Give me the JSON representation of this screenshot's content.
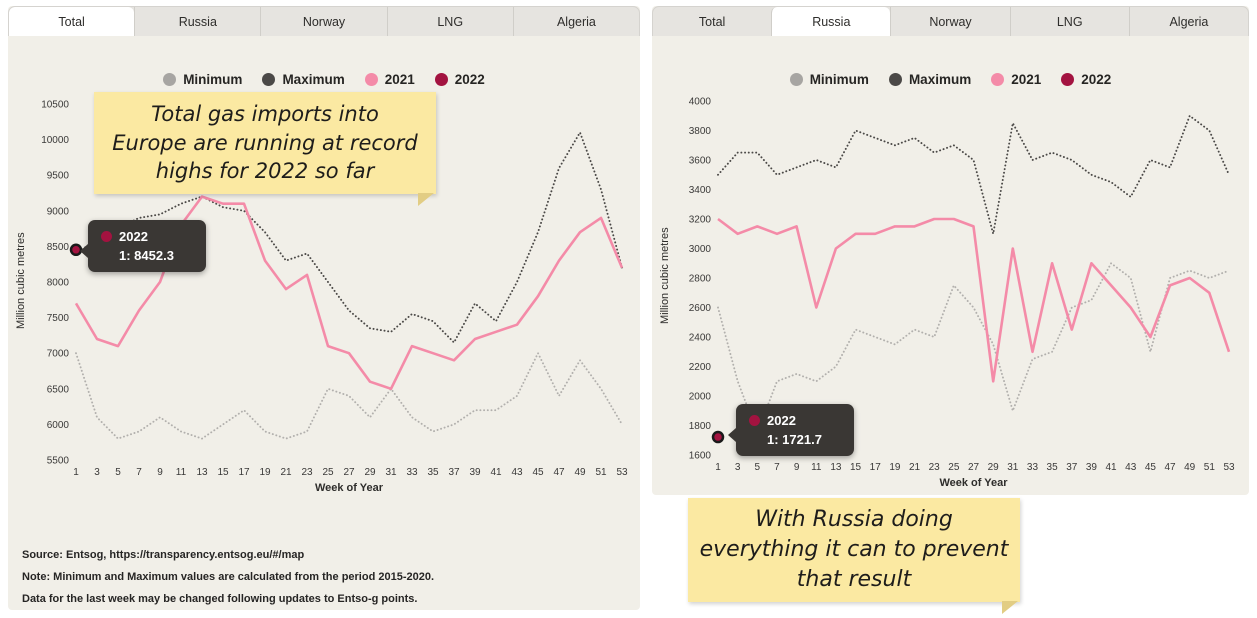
{
  "colors": {
    "panel_bg": "#f1efe8",
    "tab_bg": "#e6e4e0",
    "tab_active_bg": "#ffffff",
    "sticky_bg": "#fbe9a2",
    "sticky_fold": "#e2cd84",
    "tooltip_bg": "#3a3734",
    "minimum": "#b2b0ad",
    "maximum": "#4b4947",
    "y2021": "#f48ba8",
    "y2022": "#a31340"
  },
  "left_panel": {
    "tabs": [
      {
        "label": "Total",
        "active": true
      },
      {
        "label": "Russia",
        "active": false
      },
      {
        "label": "Norway",
        "active": false
      },
      {
        "label": "LNG",
        "active": false
      },
      {
        "label": "Algeria",
        "active": false
      }
    ],
    "legend": [
      {
        "label": "Minimum",
        "color": "#a7a5a2"
      },
      {
        "label": "Maximum",
        "color": "#4b4947"
      },
      {
        "label": "2021",
        "color": "#f48ba8"
      },
      {
        "label": "2022",
        "color": "#a31340"
      }
    ],
    "sticky_note": {
      "lines": [
        "Total gas imports into",
        "Europe are running at record",
        "highs for 2022 so far"
      ]
    },
    "tooltip": {
      "series": "2022",
      "value": "1: 8452.3"
    },
    "source_notes": [
      "Source: Entsog,  https://transparency.entsog.eu/#/map",
      "Note: Minimum and Maximum values are calculated from the period 2015-2020.",
      "Data for the last week may be changed following updates to Entso-g points."
    ]
  },
  "right_panel": {
    "tabs": [
      {
        "label": "Total",
        "active": false
      },
      {
        "label": "Russia",
        "active": true
      },
      {
        "label": "Norway",
        "active": false
      },
      {
        "label": "LNG",
        "active": false
      },
      {
        "label": "Algeria",
        "active": false
      }
    ],
    "legend": [
      {
        "label": "Minimum",
        "color": "#a7a5a2"
      },
      {
        "label": "Maximum",
        "color": "#4b4947"
      },
      {
        "label": "2021",
        "color": "#f48ba8"
      },
      {
        "label": "2022",
        "color": "#a31340"
      }
    ],
    "sticky_note": {
      "lines": [
        "With Russia doing",
        "everything it can to prevent",
        "that result"
      ]
    },
    "tooltip": {
      "series": "2022",
      "value": "1: 1721.7"
    }
  },
  "chart_data": [
    {
      "type": "line",
      "title": "Total gas imports into Europe",
      "xlabel": "Week of Year",
      "ylabel": "Million cubic metres",
      "xlim": [
        1,
        53
      ],
      "ylim": [
        5500,
        10500
      ],
      "ytick_step": 500,
      "grid": false,
      "legend_position": "top",
      "xticks": [
        1,
        3,
        5,
        7,
        9,
        11,
        13,
        15,
        17,
        19,
        21,
        23,
        25,
        27,
        29,
        31,
        33,
        35,
        37,
        39,
        41,
        43,
        45,
        47,
        49,
        51,
        53
      ],
      "x": [
        1,
        3,
        5,
        7,
        9,
        11,
        13,
        15,
        17,
        19,
        21,
        23,
        25,
        27,
        29,
        31,
        33,
        35,
        37,
        39,
        41,
        43,
        45,
        47,
        49,
        51,
        53
      ],
      "series": [
        {
          "name": "Minimum",
          "style": "dotted",
          "color": "#b2b0ad",
          "values": [
            7000,
            6100,
            5800,
            5900,
            6100,
            5900,
            5800,
            6000,
            6200,
            5900,
            5800,
            5900,
            6500,
            6400,
            6100,
            6500,
            6100,
            5900,
            6000,
            6200,
            6200,
            6400,
            7000,
            6400,
            6900,
            6500,
            6000
          ]
        },
        {
          "name": "Maximum",
          "style": "dotted",
          "color": "#4b4947",
          "values": [
            8400,
            8600,
            8750,
            8900,
            8950,
            9100,
            9200,
            9050,
            9000,
            8700,
            8300,
            8400,
            8000,
            7600,
            7350,
            7300,
            7550,
            7450,
            7150,
            7700,
            7450,
            8000,
            8700,
            9600,
            10100,
            9300,
            8200
          ]
        },
        {
          "name": "2021",
          "style": "solid",
          "color": "#f48ba8",
          "values": [
            7700,
            7200,
            7100,
            7600,
            8000,
            8800,
            9200,
            9100,
            9100,
            8300,
            7900,
            8100,
            7100,
            7000,
            6600,
            6500,
            7100,
            7000,
            6900,
            7200,
            7300,
            7400,
            7800,
            8300,
            8700,
            8900,
            8200
          ]
        },
        {
          "name": "2022",
          "style": "point",
          "color": "#a31340",
          "x": [
            1
          ],
          "values": [
            8452.3
          ]
        }
      ]
    },
    {
      "type": "line",
      "title": "Russia gas imports into Europe",
      "xlabel": "Week of Year",
      "ylabel": "Million cubic metres",
      "xlim": [
        1,
        53
      ],
      "ylim": [
        1600,
        4000
      ],
      "ytick_step": 200,
      "grid": false,
      "legend_position": "top",
      "xticks": [
        1,
        3,
        5,
        7,
        9,
        11,
        13,
        15,
        17,
        19,
        21,
        23,
        25,
        27,
        29,
        31,
        33,
        35,
        37,
        39,
        41,
        43,
        45,
        47,
        49,
        51,
        53
      ],
      "x": [
        1,
        3,
        5,
        7,
        9,
        11,
        13,
        15,
        17,
        19,
        21,
        23,
        25,
        27,
        29,
        31,
        33,
        35,
        37,
        39,
        41,
        43,
        45,
        47,
        49,
        51,
        53
      ],
      "series": [
        {
          "name": "Minimum",
          "style": "dotted",
          "color": "#b2b0ad",
          "values": [
            2600,
            2100,
            1750,
            2100,
            2150,
            2100,
            2200,
            2450,
            2400,
            2350,
            2450,
            2400,
            2750,
            2600,
            2350,
            1900,
            2250,
            2300,
            2600,
            2650,
            2900,
            2800,
            2300,
            2800,
            2850,
            2800,
            2850
          ]
        },
        {
          "name": "Maximum",
          "style": "dotted",
          "color": "#4b4947",
          "values": [
            3500,
            3650,
            3650,
            3500,
            3550,
            3600,
            3550,
            3800,
            3750,
            3700,
            3750,
            3650,
            3700,
            3600,
            3100,
            3850,
            3600,
            3650,
            3600,
            3500,
            3450,
            3350,
            3600,
            3550,
            3900,
            3800,
            3500
          ]
        },
        {
          "name": "2021",
          "style": "solid",
          "color": "#f48ba8",
          "values": [
            3200,
            3100,
            3150,
            3100,
            3150,
            2600,
            3000,
            3100,
            3100,
            3150,
            3150,
            3200,
            3200,
            3150,
            2100,
            3000,
            2300,
            2900,
            2450,
            2900,
            2750,
            2600,
            2400,
            2750,
            2800,
            2700,
            2300
          ]
        },
        {
          "name": "2022",
          "style": "point",
          "color": "#a31340",
          "x": [
            1
          ],
          "values": [
            1721.7
          ]
        }
      ]
    }
  ]
}
